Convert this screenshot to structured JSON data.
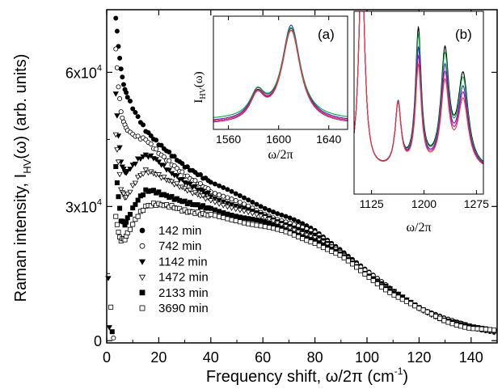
{
  "chart_data": [
    {
      "id": "main",
      "type": "scatter",
      "xlabel_main": "Frequency shift, ω/2π  (cm",
      "xlabel_sup": "-1",
      "xlabel_close": ")",
      "ylabel_pre": "Raman intensity, I",
      "ylabel_sub": "HV",
      "ylabel_post": "(ω)  (arb. units)",
      "xlim": [
        0,
        150
      ],
      "ylim": [
        -500,
        74000
      ],
      "x_ticks": [
        0,
        20,
        40,
        60,
        80,
        100,
        120,
        140
      ],
      "x_tick_labels": [
        "0",
        "20",
        "40",
        "60",
        "80",
        "100",
        "120",
        "140"
      ],
      "y_ticks": [
        {
          "value": 0,
          "base": "0",
          "exp": ""
        },
        {
          "value": 30000,
          "base": "3x10",
          "exp": "4"
        },
        {
          "value": 60000,
          "base": "6x10",
          "exp": "4"
        }
      ],
      "legend_position": "lower-left",
      "series": [
        {
          "name": "142 min",
          "marker": "circle-filled",
          "points": [
            [
              3.5,
              72000
            ],
            [
              4.5,
              66000
            ],
            [
              5.5,
              60500
            ],
            [
              7,
              56000
            ],
            [
              10,
              52000
            ],
            [
              15,
              47000
            ],
            [
              20,
              44000
            ],
            [
              25,
              41500
            ],
            [
              30,
              39000
            ],
            [
              40,
              35500
            ],
            [
              50,
              32500
            ],
            [
              60,
              30000
            ],
            [
              70,
              27500
            ],
            [
              80,
              24500
            ],
            [
              90,
              20500
            ],
            [
              100,
              15500
            ],
            [
              110,
              11000
            ],
            [
              120,
              7500
            ],
            [
              130,
              4800
            ],
            [
              140,
              3000
            ],
            [
              150,
              2000
            ]
          ]
        },
        {
          "name": "742 min",
          "marker": "circle-open",
          "points": [
            [
              3.5,
              65000
            ],
            [
              4.5,
              57000
            ],
            [
              5.5,
              51000
            ],
            [
              7,
              48000
            ],
            [
              9,
              46500
            ],
            [
              12,
              45500
            ],
            [
              15,
              45000
            ],
            [
              20,
              42000
            ],
            [
              25,
              39500
            ],
            [
              30,
              37000
            ],
            [
              40,
              33500
            ],
            [
              50,
              31000
            ],
            [
              60,
              28500
            ],
            [
              70,
              26500
            ],
            [
              80,
              24000
            ],
            [
              90,
              20000
            ],
            [
              100,
              15500
            ],
            [
              110,
              11000
            ],
            [
              120,
              7500
            ],
            [
              130,
              4800
            ],
            [
              140,
              3000
            ],
            [
              150,
              2000
            ]
          ]
        },
        {
          "name": "1142 min",
          "marker": "triangle-down-filled",
          "points": [
            [
              3.5,
              55000
            ],
            [
              4.5,
              46000
            ],
            [
              5.5,
              40000
            ],
            [
              7,
              37500
            ],
            [
              9,
              38500
            ],
            [
              12,
              40500
            ],
            [
              15,
              41500
            ],
            [
              18,
              41000
            ],
            [
              20,
              40000
            ],
            [
              25,
              37500
            ],
            [
              30,
              35500
            ],
            [
              40,
              32500
            ],
            [
              50,
              30000
            ],
            [
              60,
              28000
            ],
            [
              70,
              26000
            ],
            [
              80,
              23500
            ],
            [
              90,
              19500
            ],
            [
              100,
              15000
            ],
            [
              110,
              11000
            ],
            [
              120,
              7300
            ],
            [
              130,
              4700
            ],
            [
              140,
              3000
            ],
            [
              150,
              2000
            ]
          ]
        },
        {
          "name": "1472 min",
          "marker": "triangle-down-open",
          "points": [
            [
              3.5,
              46000
            ],
            [
              4.5,
              40000
            ],
            [
              5.5,
              34000
            ],
            [
              7,
              32000
            ],
            [
              9,
              33500
            ],
            [
              12,
              36500
            ],
            [
              15,
              38000
            ],
            [
              18,
              37500
            ],
            [
              20,
              37000
            ],
            [
              25,
              35500
            ],
            [
              30,
              34000
            ],
            [
              40,
              31500
            ],
            [
              50,
              29500
            ],
            [
              60,
              27500
            ],
            [
              70,
              25500
            ],
            [
              80,
              23000
            ],
            [
              90,
              19500
            ],
            [
              100,
              15000
            ],
            [
              110,
              10800
            ],
            [
              120,
              7200
            ],
            [
              130,
              4700
            ],
            [
              140,
              3000
            ],
            [
              150,
              2000
            ]
          ]
        },
        {
          "name": "2133 min",
          "marker": "square-filled",
          "points": [
            [
              3.5,
              39000
            ],
            [
              4.5,
              32000
            ],
            [
              5.5,
              27000
            ],
            [
              7,
              26000
            ],
            [
              9,
              28500
            ],
            [
              12,
              31500
            ],
            [
              15,
              33500
            ],
            [
              18,
              33500
            ],
            [
              20,
              33000
            ],
            [
              25,
              32000
            ],
            [
              30,
              31000
            ],
            [
              40,
              29500
            ],
            [
              50,
              28000
            ],
            [
              60,
              26500
            ],
            [
              70,
              24500
            ],
            [
              80,
              22500
            ],
            [
              90,
              19000
            ],
            [
              100,
              14800
            ],
            [
              110,
              10700
            ],
            [
              120,
              7200
            ],
            [
              130,
              4600
            ],
            [
              140,
              2900
            ],
            [
              150,
              2000
            ]
          ]
        },
        {
          "name": "3690 min",
          "marker": "square-open",
          "points": [
            [
              3.5,
              28000
            ],
            [
              4.5,
              24000
            ],
            [
              5.5,
              22500
            ],
            [
              7,
              22800
            ],
            [
              9,
              25000
            ],
            [
              12,
              28000
            ],
            [
              15,
              30000
            ],
            [
              18,
              30500
            ],
            [
              20,
              30500
            ],
            [
              25,
              30000
            ],
            [
              30,
              29000
            ],
            [
              40,
              28000
            ],
            [
              50,
              27000
            ],
            [
              60,
              25500
            ],
            [
              70,
              24000
            ],
            [
              80,
              22000
            ],
            [
              90,
              18800
            ],
            [
              100,
              14500
            ],
            [
              110,
              10500
            ],
            [
              120,
              7000
            ],
            [
              130,
              4500
            ],
            [
              140,
              2800
            ],
            [
              150,
              2000
            ]
          ]
        }
      ],
      "colors": {
        "axis": "#000000",
        "marker": "#000000"
      }
    },
    {
      "id": "inset-a",
      "type": "line",
      "label": "(a)",
      "ylabel_pre": "I",
      "ylabel_sub": "HV",
      "ylabel_post": "(ω)",
      "xlabel": "ω/2π",
      "xlim": [
        1548,
        1655
      ],
      "ylim": [
        0,
        1
      ],
      "x_ticks": [
        1560,
        1600,
        1640
      ],
      "x_tick_labels": [
        "1560",
        "1600",
        "1640"
      ],
      "peaks": [
        {
          "center": 1583,
          "width": 7,
          "height": 0.22
        },
        {
          "center": 1610,
          "width": 9,
          "height": 0.83
        }
      ],
      "series": [
        {
          "color": "#000000",
          "scale": 1.0,
          "offset": 0.0
        },
        {
          "color": "#2233cc",
          "scale": 1.02,
          "offset": 0.01
        },
        {
          "color": "#00aa33",
          "scale": 0.97,
          "offset": 0.03
        },
        {
          "color": "#cc00cc",
          "scale": 0.99,
          "offset": -0.01
        },
        {
          "color": "#ff3333",
          "scale": 0.98,
          "offset": 0.0
        }
      ]
    },
    {
      "id": "inset-b",
      "type": "line",
      "label": "(b)",
      "xlabel": "ω/2π",
      "xlim": [
        1100,
        1285
      ],
      "ylim": [
        0,
        1
      ],
      "x_ticks": [
        1125,
        1200,
        1275
      ],
      "x_tick_labels": [
        "1125",
        "1200",
        "1275"
      ],
      "peaks": [
        {
          "center": 1111,
          "width": 5,
          "height": 1.2
        },
        {
          "center": 1163,
          "width": 5,
          "height": 0.35
        },
        {
          "center": 1192,
          "width": 5,
          "height": 0.75
        },
        {
          "center": 1230,
          "width": 7,
          "height": 0.62
        },
        {
          "center": 1256,
          "width": 9,
          "height": 0.5
        }
      ],
      "series": [
        {
          "color": "#000000",
          "scale": 1.0
        },
        {
          "color": "#00aa33",
          "scale": 0.95
        },
        {
          "color": "#2233cc",
          "scale": 0.86
        },
        {
          "color": "#cc00cc",
          "scale": 0.8
        },
        {
          "color": "#ff3333",
          "scale": 0.74
        }
      ]
    }
  ]
}
